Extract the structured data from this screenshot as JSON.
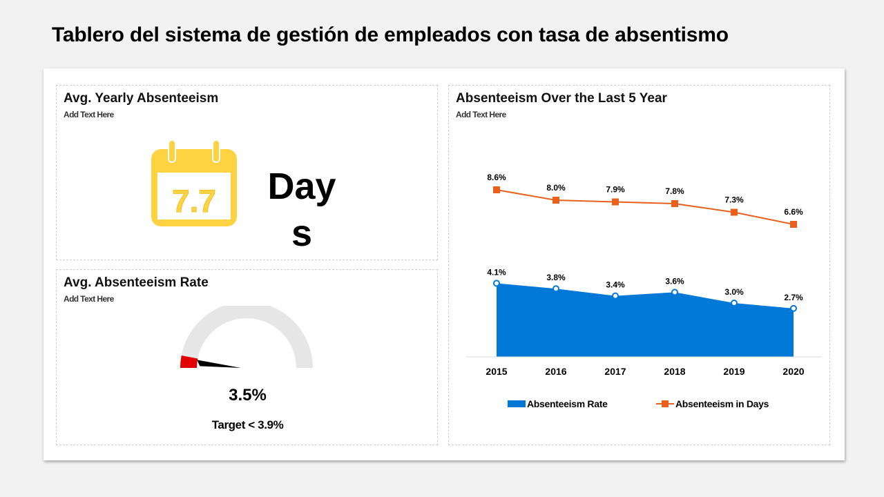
{
  "page": {
    "title": "Tablero del sistema de gestión de empleados con tasa de absentismo"
  },
  "panels": {
    "yearly": {
      "title": "Avg. Yearly Absenteeism",
      "subtitle": "Add Text Here",
      "value": "7.7",
      "unit": "Days",
      "icon": "calendar-icon",
      "color": "#ffd242"
    },
    "rate": {
      "title": "Avg. Absenteeism Rate",
      "subtitle": "Add Text Here",
      "value": "3.5%",
      "target": "Target < 3.9%",
      "gauge_fraction": 0.06,
      "track_color": "#e6e6e6",
      "fill_color": "#e00000",
      "needle_color": "#000000"
    },
    "trend": {
      "title": "Absenteeism Over the Last 5 Year",
      "subtitle": "Add Text Here"
    }
  },
  "chart_data": {
    "type": "line",
    "title": "Absenteeism Over the Last 5 Year",
    "categories": [
      "2015",
      "2016",
      "2017",
      "2018",
      "2019",
      "2020"
    ],
    "series": [
      {
        "name": "Absenteeism Rate",
        "kind": "area",
        "values": [
          4.1,
          3.8,
          3.4,
          3.6,
          3.0,
          2.7
        ],
        "labels": [
          "4.1%",
          "3.8%",
          "3.4%",
          "3.6%",
          "3.0%",
          "2.7%"
        ],
        "color": "#0078d7"
      },
      {
        "name": "Absenteeism in Days",
        "kind": "line",
        "values": [
          8.6,
          8.0,
          7.9,
          7.8,
          7.3,
          6.6
        ],
        "labels": [
          "8.6%",
          "8.0%",
          "7.9%",
          "7.8%",
          "7.3%",
          "6.6%"
        ],
        "color": "#e8601c"
      }
    ],
    "legend": "bottom",
    "grid": false
  }
}
